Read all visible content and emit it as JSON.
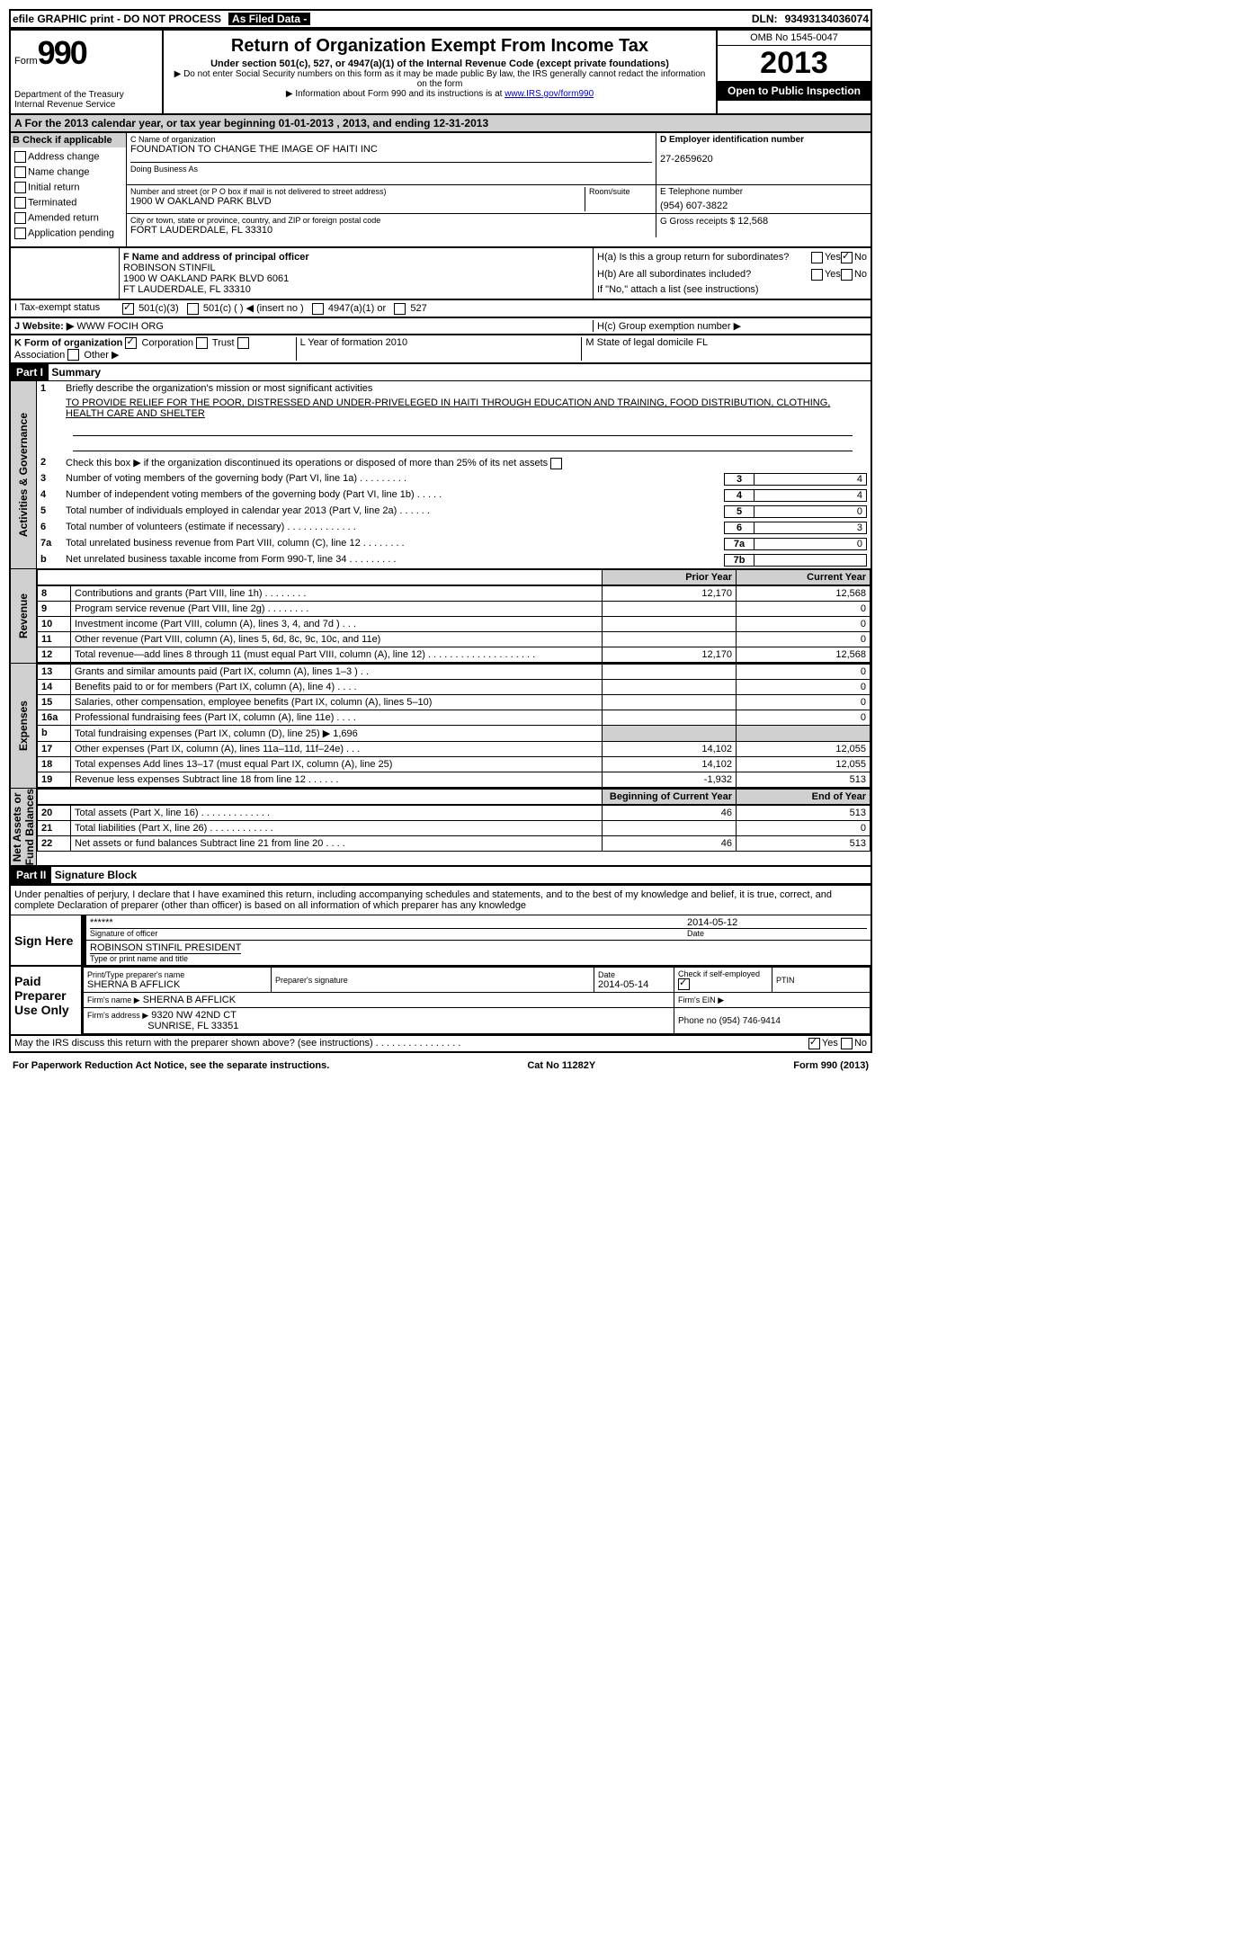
{
  "header": {
    "efile": "efile GRAPHIC print - DO NOT PROCESS",
    "asfiled": "As Filed Data -",
    "dln_label": "DLN:",
    "dln": "93493134036074"
  },
  "formid": {
    "form_word": "Form",
    "num": "990",
    "dept": "Department of the Treasury",
    "irs": "Internal Revenue Service"
  },
  "title": {
    "main": "Return of Organization Exempt From Income Tax",
    "sub1": "Under section 501(c), 527, or 4947(a)(1) of the Internal Revenue Code (except private foundations)",
    "sub2": "▶ Do not enter Social Security numbers on this form as it may be made public  By law, the IRS generally cannot redact the information on the form",
    "sub3": "▶ Information about Form 990 and its instructions is at ",
    "link": "www.IRS.gov/form990"
  },
  "right": {
    "omb": "OMB No  1545-0047",
    "year": "2013",
    "open": "Open to Public Inspection"
  },
  "rowA": "A  For the 2013 calendar year, or tax year beginning 01-01-2013     , 2013, and ending 12-31-2013",
  "colB": {
    "head": "B  Check if applicable",
    "items": [
      "Address change",
      "Name change",
      "Initial return",
      "Terminated",
      "Amended return",
      "Application pending"
    ]
  },
  "colC": {
    "name_label": "C Name of organization",
    "name": "FOUNDATION TO CHANGE THE IMAGE OF HAITI INC",
    "dba_label": "Doing Business As",
    "addr_label": "Number and street (or P O  box if mail is not delivered to street address)",
    "room_label": "Room/suite",
    "addr": "1900 W OAKLAND PARK BLVD",
    "city_label": "City or town, state or province, country, and ZIP or foreign postal code",
    "city": "FORT LAUDERDALE, FL  33310"
  },
  "colD": {
    "ein_label": "D Employer identification number",
    "ein": "27-2659620",
    "tel_label": "E Telephone number",
    "tel": "(954) 607-3822",
    "gross_label": "G Gross receipts $",
    "gross": "12,568"
  },
  "colF": {
    "label": "F  Name and address of principal officer",
    "name": "ROBINSON STINFIL",
    "addr1": "1900 W OAKLAND PARK BLVD 6061",
    "addr2": "FT LAUDERDALE, FL  33310"
  },
  "colH": {
    "ha": "H(a)  Is this a group return for subordinates?",
    "hb": "H(b)  Are all subordinates included?",
    "hnote": "If \"No,\" attach a list  (see instructions)",
    "hc": "H(c)   Group exemption number ▶",
    "yes": "Yes",
    "no": "No"
  },
  "rowI": {
    "label": "I   Tax-exempt status",
    "o1": "501(c)(3)",
    "o2": "501(c) (  ) ◀ (insert no )",
    "o3": "4947(a)(1) or",
    "o4": "527"
  },
  "rowJ": {
    "label": "J   Website: ▶",
    "val": "WWW FOCIH ORG"
  },
  "rowK": {
    "k": "K Form of organization",
    "corp": "Corporation",
    "trust": "Trust",
    "assoc": "Association",
    "other": "Other ▶",
    "l": "L Year of formation  2010",
    "m": "M State of legal domicile   FL"
  },
  "parts": {
    "p1": "Part I",
    "p1t": "Summary",
    "p2": "Part II",
    "p2t": "Signature Block"
  },
  "section_labels": {
    "ag": "Activities & Governance",
    "rev": "Revenue",
    "exp": "Expenses",
    "na": "Net Assets or\nFund Balances"
  },
  "gov": {
    "l1": "Briefly describe the organization's mission or most significant activities",
    "mission": "TO PROVIDE RELIEF FOR THE POOR, DISTRESSED AND UNDER-PRIVELEGED IN HAITI THROUGH EDUCATION AND TRAINING, FOOD DISTRIBUTION, CLOTHING, HEALTH CARE AND SHELTER",
    "l2": "Check this box ▶     if the organization discontinued its operations or disposed of more than 25% of its net assets",
    "l3": "Number of voting members of the governing body (Part VI, line 1a)  .   .   .   .   .   .   .   .   .",
    "l3v": "4",
    "l4": "Number of independent voting members of the governing body (Part VI, line 1b)  .   .   .   .   .",
    "l4v": "4",
    "l5": "Total number of individuals employed in calendar year 2013 (Part V, line 2a)  .   .   .   .   .   .",
    "l5v": "0",
    "l6": "Total number of volunteers (estimate if necessary)   .   .   .   .   .   .   .   .   .   .   .   .   .",
    "l6v": "3",
    "l7a": "Total unrelated business revenue from Part VIII, column (C), line 12  .   .   .   .   .   .   .   .",
    "l7av": "0",
    "l7b": "Net unrelated business taxable income from Form 990-T, line 34   .   .   .   .   .   .   .   .   ."
  },
  "fin_headers": {
    "prior": "Prior Year",
    "current": "Current Year",
    "begin": "Beginning of Current Year",
    "end": "End of Year"
  },
  "rev": [
    {
      "n": "8",
      "d": "Contributions and grants (Part VIII, line 1h)   .   .   .   .   .   .   .   .",
      "p": "12,170",
      "c": "12,568"
    },
    {
      "n": "9",
      "d": "Program service revenue (Part VIII, line 2g)   .   .   .   .   .   .   .   .",
      "p": "",
      "c": "0"
    },
    {
      "n": "10",
      "d": "Investment income (Part VIII, column (A), lines 3, 4, and 7d )  .   .   .",
      "p": "",
      "c": "0"
    },
    {
      "n": "11",
      "d": "Other revenue (Part VIII, column (A), lines 5, 6d, 8c, 9c, 10c, and 11e)",
      "p": "",
      "c": "0"
    },
    {
      "n": "12",
      "d": "Total revenue—add lines 8 through 11 (must equal Part VIII, column (A), line 12) .   .   .   .   .   .   .   .   .   .   .   .   .   .   .   .   .   .   .   .",
      "p": "12,170",
      "c": "12,568"
    }
  ],
  "exp": [
    {
      "n": "13",
      "d": "Grants and similar amounts paid (Part IX, column (A), lines 1–3 )  .   .",
      "p": "",
      "c": "0"
    },
    {
      "n": "14",
      "d": "Benefits paid to or for members (Part IX, column (A), line 4)  .   .   .   .",
      "p": "",
      "c": "0"
    },
    {
      "n": "15",
      "d": "Salaries, other compensation, employee benefits (Part IX, column (A), lines 5–10)",
      "p": "",
      "c": "0"
    },
    {
      "n": "16a",
      "d": "Professional fundraising fees (Part IX, column (A), line 11e)  .   .   .   .",
      "p": "",
      "c": "0"
    },
    {
      "n": "b",
      "d": "Total fundraising expenses (Part IX, column (D), line 25)  ▶ 1,696",
      "p": "—",
      "c": "—"
    },
    {
      "n": "17",
      "d": "Other expenses (Part IX, column (A), lines 11a–11d, 11f–24e)  .   .   .",
      "p": "14,102",
      "c": "12,055"
    },
    {
      "n": "18",
      "d": "Total expenses  Add lines 13–17 (must equal Part IX, column (A), line 25)",
      "p": "14,102",
      "c": "12,055"
    },
    {
      "n": "19",
      "d": "Revenue less expenses  Subtract line 18 from line 12   .   .   .   .   .   .",
      "p": "-1,932",
      "c": "513"
    }
  ],
  "na": [
    {
      "n": "20",
      "d": "Total assets (Part X, line 16)   .   .   .   .   .   .   .   .   .   .   .   .   .",
      "p": "46",
      "c": "513"
    },
    {
      "n": "21",
      "d": "Total liabilities (Part X, line 26)   .   .   .   .   .   .   .   .   .   .   .   .",
      "p": "",
      "c": "0"
    },
    {
      "n": "22",
      "d": "Net assets or fund balances  Subtract line 21 from line 20  .   .   .   .",
      "p": "46",
      "c": "513"
    }
  ],
  "sig": {
    "decl": "Under penalties of perjury, I declare that I have examined this return, including accompanying schedules and statements, and to the best of my knowledge and belief, it is true, correct, and complete  Declaration of preparer (other than officer) is based on all information of which preparer has any knowledge",
    "sign_here": "Sign Here",
    "stars": "******",
    "date1": "2014-05-12",
    "sig_label": "Signature of officer",
    "date_label": "Date",
    "name": "ROBINSON STINFIL PRESIDENT",
    "name_label": "Type or print name and title"
  },
  "prep": {
    "label": "Paid Preparer Use Only",
    "h1": "Print/Type preparer's name",
    "v1": "SHERNA B AFFLICK",
    "h2": "Preparer's signature",
    "h3": "Date",
    "v3": "2014-05-14",
    "h4": "Check       if self-employed",
    "h5": "PTIN",
    "firm_name_l": "Firm's name   ▶",
    "firm_name": "SHERNA B AFFLICK",
    "firm_ein_l": "Firm's EIN ▶",
    "firm_addr_l": "Firm's address ▶",
    "firm_addr1": "9320 NW 42ND CT",
    "firm_addr2": "SUNRISE, FL  33351",
    "phone_l": "Phone no  (954) 746-9414"
  },
  "discuss": {
    "text": "May the IRS discuss this return with the preparer shown above? (see instructions)   .   .   .   .   .   .   .   .   .   .   .   .   .   .   .   .",
    "yes": "Yes",
    "no": "No"
  },
  "footer": {
    "left": "For Paperwork Reduction Act Notice, see the separate instructions.",
    "mid": "Cat  No  11282Y",
    "right": "Form 990 (2013)"
  }
}
